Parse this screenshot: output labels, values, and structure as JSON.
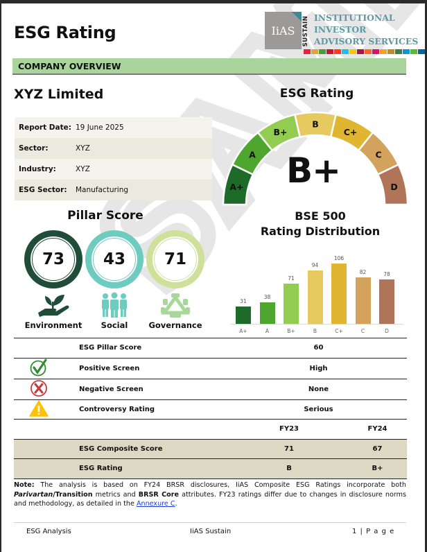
{
  "header": {
    "title": "ESG Rating",
    "logo": {
      "mark": "IiAS",
      "vertical": "SUSTAIN",
      "lines": [
        "INSTITUTIONAL",
        "INVESTOR",
        "ADVISORY SERVICES"
      ],
      "sdg_colors": [
        "#e5243b",
        "#dda63a",
        "#4c9f38",
        "#c5192d",
        "#ff3a21",
        "#26bde2",
        "#fcc30b",
        "#a21942",
        "#fd6925",
        "#dd1367",
        "#fd9d24",
        "#bf8b2e",
        "#3f7e44",
        "#0a97d9",
        "#56c02b",
        "#00689d",
        "#19486a"
      ]
    }
  },
  "section": {
    "label": "COMPANY OVERVIEW"
  },
  "company": {
    "name": "XYZ Limited",
    "fields": [
      {
        "label": "Report Date:",
        "value": "19 June 2025"
      },
      {
        "label": "Sector:",
        "value": "XYZ"
      },
      {
        "label": "Industry:",
        "value": "XYZ"
      },
      {
        "label": "ESG Sector:",
        "value": "Manufacturing"
      }
    ]
  },
  "esg_rating": {
    "title": "ESG Rating",
    "current": "B+",
    "scale": [
      {
        "grade": "A+",
        "color": "#1e6b29"
      },
      {
        "grade": "A",
        "color": "#4ea62f"
      },
      {
        "grade": "B+",
        "color": "#92cd52"
      },
      {
        "grade": "B",
        "color": "#e6c95f"
      },
      {
        "grade": "C+",
        "color": "#dfb531"
      },
      {
        "grade": "C",
        "color": "#d3a25d"
      },
      {
        "grade": "D",
        "color": "#b07558"
      }
    ]
  },
  "pillar_score": {
    "title": "Pillar Score",
    "pillars": [
      {
        "name": "Environment",
        "score": "73",
        "color": "#1f4d3a",
        "icon": "plant-in-hand-icon"
      },
      {
        "name": "Social",
        "score": "43",
        "color": "#6ecbc0",
        "icon": "people-group-icon"
      },
      {
        "name": "Governance",
        "score": "71",
        "color": "#cfe09a",
        "icon": "boardroom-table-icon"
      }
    ]
  },
  "chart_data": {
    "type": "bar",
    "title": "BSE 500 Rating Distribution",
    "title_lines": [
      "BSE 500",
      "Rating Distribution"
    ],
    "categories": [
      "A+",
      "A",
      "B+",
      "B",
      "C+",
      "C",
      "D"
    ],
    "values": [
      31,
      38,
      71,
      94,
      106,
      82,
      78
    ],
    "colors": [
      "#1e6b29",
      "#4ea62f",
      "#92cd52",
      "#e6c95f",
      "#dfb531",
      "#d3a25d",
      "#b07558"
    ],
    "xlabel": "",
    "ylabel": "",
    "ylim": [
      0,
      110
    ],
    "grid": false,
    "legend": false,
    "data_labels": true
  },
  "metrics": [
    {
      "icon": "",
      "label": "ESG Pillar Score",
      "value": "60"
    },
    {
      "icon": "check-circle-icon",
      "label": "Positive Screen",
      "value": "High"
    },
    {
      "icon": "x-circle-icon",
      "label": "Negative Screen",
      "value": "None"
    },
    {
      "icon": "warning-triangle-icon",
      "label": "Controversy Rating",
      "value": "Serious"
    }
  ],
  "comparison": {
    "headers": [
      "",
      "FY23",
      "FY24"
    ],
    "rows": [
      {
        "label": "ESG Composite Score",
        "fy23": "71",
        "fy24": "67"
      },
      {
        "label": "ESG Rating",
        "fy23": "B",
        "fy24": "B+"
      }
    ]
  },
  "note": {
    "prefix": "Note:",
    "text1": " The analysis is based on FY24 BRSR disclosures, IiAS Composite ESG Ratings incorporate both ",
    "italic": "Parivartan",
    "bold1": "/Transition",
    "text2": " metrics and ",
    "bold2": "BRSR Core",
    "text3": " attributes. FY23 ratings differ due to changes in disclosure norms and methodology, as detailed in the ",
    "link": "Annexure C",
    "text4": "."
  },
  "footer": {
    "left": "ESG Analysis",
    "center": "IiAS Sustain",
    "right": "1 | P a g e"
  },
  "watermark": "SAMPLE"
}
